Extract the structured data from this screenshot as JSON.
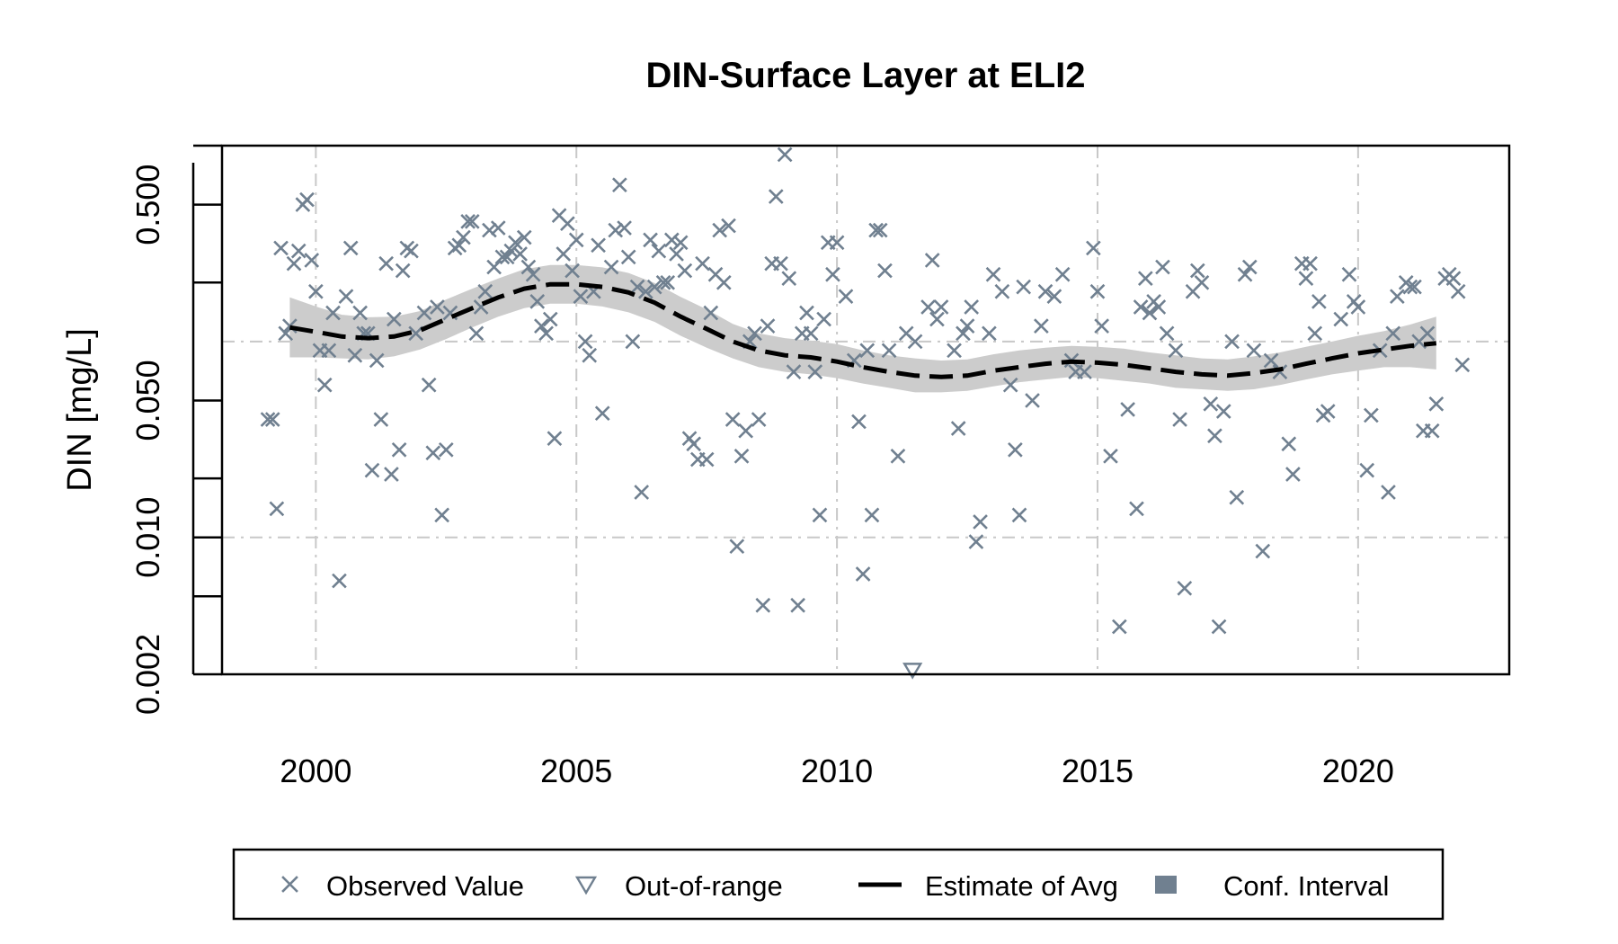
{
  "chart_data": {
    "type": "scatter",
    "title": "DIN-Surface Layer at ELI2",
    "ylabel": "DIN [mg/L]",
    "xlabel": "",
    "y_scale": "log",
    "xlim": [
      1998.2,
      2022.9
    ],
    "ylim": [
      0.002,
      1.0
    ],
    "x_ticks": [
      2000,
      2005,
      2010,
      2015,
      2020
    ],
    "x_tick_labels": [
      "2000",
      "2005",
      "2010",
      "2015",
      "2020"
    ],
    "y_ticks": [
      0.002,
      0.01,
      0.05,
      0.5
    ],
    "y_tick_labels": [
      "0.002",
      "0.010",
      "0.050",
      "0.500"
    ],
    "y_minor_ticks": [
      0.005,
      0.02,
      0.2
    ],
    "grid_y": [
      0.01,
      0.1,
      1.0
    ],
    "grid": true,
    "legend_position": "bottom",
    "colors": {
      "observed": "#708090",
      "estimate": "#000000",
      "conf_interval_band": "#cccccc",
      "conf_interval_legend": "#708090",
      "grid": "#c8c8c8"
    },
    "legend": [
      {
        "label": "Observed Value",
        "symbol": "x-mark"
      },
      {
        "label": "Out-of-range",
        "symbol": "down-triangle"
      },
      {
        "label": "Estimate of Avg",
        "symbol": "dashed-line"
      },
      {
        "label": "Conf. Interval",
        "symbol": "filled-square"
      }
    ],
    "series": [
      {
        "kind": "observed",
        "points": [
          [
            1999.08,
            0.04
          ],
          [
            1999.17,
            0.04
          ],
          [
            1999.25,
            0.014
          ],
          [
            1999.33,
            0.3
          ],
          [
            1999.42,
            0.11
          ],
          [
            1999.5,
            0.12
          ],
          [
            1999.58,
            0.25
          ],
          [
            1999.67,
            0.29
          ],
          [
            1999.75,
            0.5
          ],
          [
            1999.83,
            0.53
          ],
          [
            1999.92,
            0.26
          ],
          [
            2000.0,
            0.18
          ],
          [
            2000.08,
            0.09
          ],
          [
            2000.17,
            0.06
          ],
          [
            2000.25,
            0.09
          ],
          [
            2000.33,
            0.14
          ],
          [
            2000.45,
            0.006
          ],
          [
            2000.58,
            0.17
          ],
          [
            2000.67,
            0.3
          ],
          [
            2000.75,
            0.085
          ],
          [
            2000.85,
            0.14
          ],
          [
            2000.92,
            0.11
          ],
          [
            2001.0,
            0.11
          ],
          [
            2001.08,
            0.022
          ],
          [
            2001.17,
            0.08
          ],
          [
            2001.25,
            0.04
          ],
          [
            2001.35,
            0.25
          ],
          [
            2001.45,
            0.021
          ],
          [
            2001.5,
            0.13
          ],
          [
            2001.6,
            0.028
          ],
          [
            2001.67,
            0.23
          ],
          [
            2001.75,
            0.3
          ],
          [
            2001.83,
            0.29
          ],
          [
            2001.92,
            0.11
          ],
          [
            2002.08,
            0.14
          ],
          [
            2002.17,
            0.06
          ],
          [
            2002.25,
            0.027
          ],
          [
            2002.33,
            0.15
          ],
          [
            2002.42,
            0.013
          ],
          [
            2002.5,
            0.028
          ],
          [
            2002.58,
            0.14
          ],
          [
            2002.67,
            0.3
          ],
          [
            2002.75,
            0.31
          ],
          [
            2002.83,
            0.34
          ],
          [
            2002.92,
            0.41
          ],
          [
            2003.0,
            0.41
          ],
          [
            2003.08,
            0.11
          ],
          [
            2003.17,
            0.15
          ],
          [
            2003.25,
            0.18
          ],
          [
            2003.33,
            0.37
          ],
          [
            2003.42,
            0.24
          ],
          [
            2003.5,
            0.38
          ],
          [
            2003.58,
            0.27
          ],
          [
            2003.67,
            0.27
          ],
          [
            2003.75,
            0.29
          ],
          [
            2003.83,
            0.32
          ],
          [
            2003.92,
            0.28
          ],
          [
            2004.0,
            0.34
          ],
          [
            2004.08,
            0.24
          ],
          [
            2004.17,
            0.22
          ],
          [
            2004.25,
            0.16
          ],
          [
            2004.33,
            0.12
          ],
          [
            2004.42,
            0.11
          ],
          [
            2004.5,
            0.13
          ],
          [
            2004.58,
            0.032
          ],
          [
            2004.67,
            0.44
          ],
          [
            2004.75,
            0.28
          ],
          [
            2004.83,
            0.4
          ],
          [
            2004.92,
            0.23
          ],
          [
            2005.0,
            0.33
          ],
          [
            2005.08,
            0.17
          ],
          [
            2005.17,
            0.1
          ],
          [
            2005.25,
            0.085
          ],
          [
            2005.33,
            0.18
          ],
          [
            2005.42,
            0.31
          ],
          [
            2005.5,
            0.043
          ],
          [
            2005.67,
            0.24
          ],
          [
            2005.75,
            0.37
          ],
          [
            2005.83,
            0.63
          ],
          [
            2005.92,
            0.38
          ],
          [
            2006.0,
            0.27
          ],
          [
            2006.08,
            0.1
          ],
          [
            2006.17,
            0.19
          ],
          [
            2006.25,
            0.017
          ],
          [
            2006.33,
            0.18
          ],
          [
            2006.42,
            0.33
          ],
          [
            2006.5,
            0.19
          ],
          [
            2006.58,
            0.29
          ],
          [
            2006.67,
            0.2
          ],
          [
            2006.75,
            0.2
          ],
          [
            2006.83,
            0.33
          ],
          [
            2006.92,
            0.28
          ],
          [
            2007.0,
            0.32
          ],
          [
            2007.08,
            0.23
          ],
          [
            2007.17,
            0.032
          ],
          [
            2007.25,
            0.03
          ],
          [
            2007.33,
            0.025
          ],
          [
            2007.42,
            0.25
          ],
          [
            2007.5,
            0.025
          ],
          [
            2007.58,
            0.14
          ],
          [
            2007.67,
            0.22
          ],
          [
            2007.75,
            0.37
          ],
          [
            2007.83,
            0.2
          ],
          [
            2007.92,
            0.39
          ],
          [
            2008.0,
            0.04
          ],
          [
            2008.08,
            0.009
          ],
          [
            2008.17,
            0.026
          ],
          [
            2008.25,
            0.035
          ],
          [
            2008.33,
            0.1
          ],
          [
            2008.42,
            0.11
          ],
          [
            2008.5,
            0.04
          ],
          [
            2008.58,
            0.0045
          ],
          [
            2008.67,
            0.12
          ],
          [
            2008.75,
            0.25
          ],
          [
            2008.83,
            0.55
          ],
          [
            2008.92,
            0.25
          ],
          [
            2009.0,
            0.9
          ],
          [
            2009.08,
            0.21
          ],
          [
            2009.17,
            0.07
          ],
          [
            2009.25,
            0.0045
          ],
          [
            2009.33,
            0.11
          ],
          [
            2009.42,
            0.14
          ],
          [
            2009.5,
            0.11
          ],
          [
            2009.58,
            0.07
          ],
          [
            2009.67,
            0.013
          ],
          [
            2009.75,
            0.13
          ],
          [
            2009.83,
            0.32
          ],
          [
            2009.92,
            0.22
          ],
          [
            2010.0,
            0.32
          ],
          [
            2010.17,
            0.17
          ],
          [
            2010.33,
            0.08
          ],
          [
            2010.42,
            0.039
          ],
          [
            2010.5,
            0.0065
          ],
          [
            2010.58,
            0.09
          ],
          [
            2010.67,
            0.013
          ],
          [
            2010.75,
            0.37
          ],
          [
            2010.83,
            0.37
          ],
          [
            2010.92,
            0.23
          ],
          [
            2011.0,
            0.09
          ],
          [
            2011.17,
            0.026
          ],
          [
            2011.33,
            0.11
          ],
          [
            2011.5,
            0.1
          ],
          [
            2011.75,
            0.15
          ],
          [
            2011.83,
            0.26
          ],
          [
            2011.92,
            0.13
          ],
          [
            2012.0,
            0.15
          ],
          [
            2012.25,
            0.09
          ],
          [
            2012.33,
            0.036
          ],
          [
            2012.42,
            0.11
          ],
          [
            2012.5,
            0.12
          ],
          [
            2012.58,
            0.15
          ],
          [
            2012.67,
            0.0095
          ],
          [
            2012.75,
            0.012
          ],
          [
            2012.92,
            0.11
          ],
          [
            2013.0,
            0.22
          ],
          [
            2013.17,
            0.18
          ],
          [
            2013.33,
            0.06
          ],
          [
            2013.42,
            0.028
          ],
          [
            2013.5,
            0.013
          ],
          [
            2013.58,
            0.19
          ],
          [
            2013.75,
            0.05
          ],
          [
            2013.92,
            0.12
          ],
          [
            2014.0,
            0.18
          ],
          [
            2014.17,
            0.17
          ],
          [
            2014.33,
            0.22
          ],
          [
            2014.5,
            0.08
          ],
          [
            2014.58,
            0.07
          ],
          [
            2014.75,
            0.07
          ],
          [
            2014.92,
            0.3
          ],
          [
            2015.0,
            0.18
          ],
          [
            2015.08,
            0.12
          ],
          [
            2015.25,
            0.026
          ],
          [
            2015.42,
            0.0035
          ],
          [
            2015.58,
            0.045
          ],
          [
            2015.75,
            0.014
          ],
          [
            2015.83,
            0.15
          ],
          [
            2015.92,
            0.21
          ],
          [
            2016.0,
            0.14
          ],
          [
            2016.08,
            0.16
          ],
          [
            2016.17,
            0.15
          ],
          [
            2016.25,
            0.24
          ],
          [
            2016.33,
            0.11
          ],
          [
            2016.5,
            0.09
          ],
          [
            2016.58,
            0.04
          ],
          [
            2016.67,
            0.0055
          ],
          [
            2016.83,
            0.18
          ],
          [
            2016.92,
            0.23
          ],
          [
            2017.0,
            0.2
          ],
          [
            2017.17,
            0.048
          ],
          [
            2017.25,
            0.033
          ],
          [
            2017.33,
            0.0035
          ],
          [
            2017.42,
            0.044
          ],
          [
            2017.58,
            0.1
          ],
          [
            2017.67,
            0.016
          ],
          [
            2017.83,
            0.22
          ],
          [
            2017.92,
            0.24
          ],
          [
            2018.0,
            0.09
          ],
          [
            2018.17,
            0.0085
          ],
          [
            2018.33,
            0.08
          ],
          [
            2018.5,
            0.07
          ],
          [
            2018.67,
            0.03
          ],
          [
            2018.75,
            0.021
          ],
          [
            2018.92,
            0.25
          ],
          [
            2019.0,
            0.21
          ],
          [
            2019.08,
            0.25
          ],
          [
            2019.17,
            0.11
          ],
          [
            2019.25,
            0.16
          ],
          [
            2019.33,
            0.042
          ],
          [
            2019.42,
            0.044
          ],
          [
            2019.67,
            0.13
          ],
          [
            2019.83,
            0.22
          ],
          [
            2019.92,
            0.16
          ],
          [
            2020.0,
            0.15
          ],
          [
            2020.17,
            0.022
          ],
          [
            2020.25,
            0.042
          ],
          [
            2020.42,
            0.09
          ],
          [
            2020.58,
            0.017
          ],
          [
            2020.67,
            0.11
          ],
          [
            2020.75,
            0.17
          ],
          [
            2020.92,
            0.2
          ],
          [
            2021.0,
            0.19
          ],
          [
            2021.08,
            0.19
          ],
          [
            2021.17,
            0.1
          ],
          [
            2021.25,
            0.035
          ],
          [
            2021.33,
            0.11
          ],
          [
            2021.42,
            0.035
          ],
          [
            2021.5,
            0.048
          ],
          [
            2021.67,
            0.21
          ],
          [
            2021.75,
            0.22
          ],
          [
            2021.83,
            0.21
          ],
          [
            2021.92,
            0.18
          ],
          [
            2022.0,
            0.076
          ]
        ]
      },
      {
        "kind": "out_of_range",
        "points": [
          [
            2011.45,
            0.0021
          ]
        ]
      },
      {
        "kind": "estimate",
        "x": [
          1999.5,
          2000.0,
          2000.5,
          2001.0,
          2001.5,
          2002.0,
          2002.5,
          2003.0,
          2003.5,
          2004.0,
          2004.5,
          2005.0,
          2005.5,
          2006.0,
          2006.5,
          2007.0,
          2007.5,
          2008.0,
          2008.5,
          2009.0,
          2009.5,
          2010.0,
          2010.5,
          2011.0,
          2011.5,
          2012.0,
          2012.5,
          2013.0,
          2013.5,
          2014.0,
          2014.5,
          2015.0,
          2015.5,
          2016.0,
          2016.5,
          2017.0,
          2017.5,
          2018.0,
          2018.5,
          2019.0,
          2019.5,
          2020.0,
          2020.5,
          2021.0,
          2021.5
        ],
        "y": [
          0.118,
          0.112,
          0.106,
          0.104,
          0.106,
          0.114,
          0.13,
          0.148,
          0.168,
          0.186,
          0.196,
          0.196,
          0.19,
          0.178,
          0.158,
          0.134,
          0.116,
          0.1,
          0.09,
          0.085,
          0.083,
          0.079,
          0.074,
          0.07,
          0.067,
          0.066,
          0.067,
          0.071,
          0.074,
          0.077,
          0.079,
          0.078,
          0.076,
          0.073,
          0.07,
          0.068,
          0.067,
          0.069,
          0.072,
          0.077,
          0.082,
          0.087,
          0.091,
          0.095,
          0.098
        ],
        "ci_lower": [
          0.083,
          0.083,
          0.082,
          0.081,
          0.084,
          0.091,
          0.103,
          0.118,
          0.134,
          0.148,
          0.156,
          0.156,
          0.151,
          0.141,
          0.126,
          0.107,
          0.093,
          0.082,
          0.074,
          0.07,
          0.068,
          0.065,
          0.061,
          0.058,
          0.055,
          0.055,
          0.056,
          0.059,
          0.062,
          0.064,
          0.066,
          0.065,
          0.063,
          0.061,
          0.058,
          0.057,
          0.056,
          0.057,
          0.06,
          0.064,
          0.068,
          0.071,
          0.074,
          0.074,
          0.072
        ],
        "ci_upper": [
          0.168,
          0.151,
          0.137,
          0.133,
          0.134,
          0.143,
          0.164,
          0.186,
          0.21,
          0.234,
          0.246,
          0.246,
          0.239,
          0.224,
          0.199,
          0.169,
          0.146,
          0.123,
          0.11,
          0.104,
          0.101,
          0.097,
          0.09,
          0.085,
          0.082,
          0.08,
          0.081,
          0.086,
          0.09,
          0.093,
          0.095,
          0.094,
          0.092,
          0.088,
          0.085,
          0.082,
          0.081,
          0.084,
          0.088,
          0.094,
          0.1,
          0.107,
          0.113,
          0.122,
          0.134
        ]
      }
    ]
  }
}
